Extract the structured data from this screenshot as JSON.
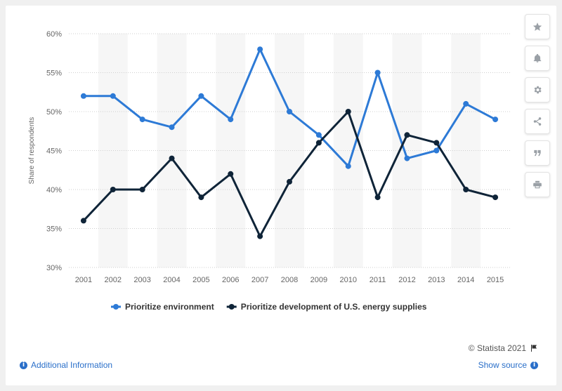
{
  "chart_data": {
    "type": "line",
    "categories": [
      "2001",
      "2002",
      "2003",
      "2004",
      "2005",
      "2006",
      "2007",
      "2008",
      "2009",
      "2010",
      "2011",
      "2012",
      "2013",
      "2014",
      "2015"
    ],
    "series": [
      {
        "name": "Prioritize environment",
        "color": "#2d7ad6",
        "values": [
          52,
          52,
          49,
          48,
          52,
          49,
          58,
          50,
          47,
          43,
          55,
          44,
          45,
          51,
          49
        ]
      },
      {
        "name": "Prioritize development of U.S. energy supplies",
        "color": "#0f2438",
        "values": [
          36,
          40,
          40,
          44,
          39,
          42,
          34,
          41,
          46,
          50,
          39,
          47,
          46,
          40,
          39
        ]
      }
    ],
    "ylabel": "Share of respondents",
    "ylim": [
      30,
      60
    ],
    "yticks": [
      30,
      35,
      40,
      45,
      50,
      55,
      60
    ],
    "ytick_labels": [
      "30%",
      "35%",
      "40%",
      "45%",
      "50%",
      "55%",
      "60%"
    ],
    "grid": true,
    "legend_position": "bottom"
  },
  "toolbar": {
    "icons": [
      "star-icon",
      "bell-icon",
      "gear-icon",
      "share-icon",
      "quote-icon",
      "print-icon"
    ]
  },
  "footer": {
    "copyright": "© Statista 2021",
    "additional_info": "Additional Information",
    "show_source": "Show source"
  }
}
